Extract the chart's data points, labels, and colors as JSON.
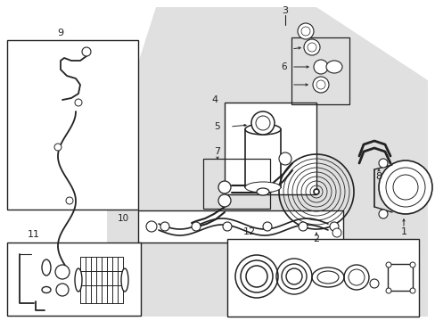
{
  "bg_color": "#ffffff",
  "shaded_color": "#e0e0e0",
  "line_color": "#222222",
  "fig_width": 4.89,
  "fig_height": 3.6,
  "dpi": 100
}
